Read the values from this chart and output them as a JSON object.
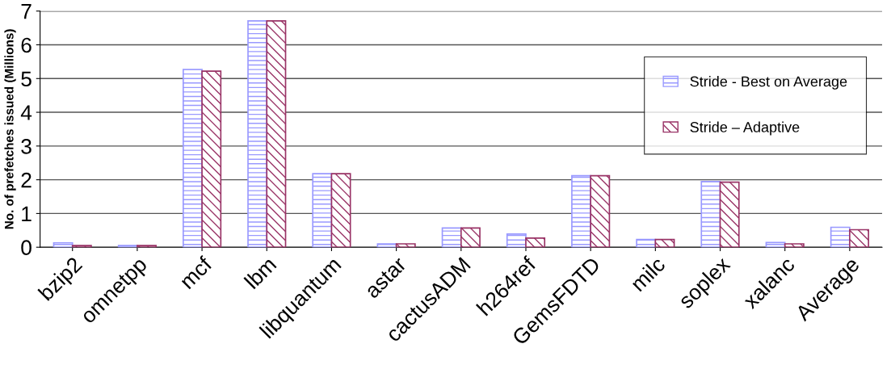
{
  "chart_data": {
    "type": "bar",
    "ylabel": "No. of prefetches issued (Millions)",
    "categories": [
      "bzip2",
      "omnetpp",
      "mcf",
      "lbm",
      "libquantum",
      "astar",
      "cactusADM",
      "h264ref",
      "GemsFDTD",
      "milc",
      "soplex",
      "xalanc",
      "Average"
    ],
    "series": [
      {
        "name": "Stride - Best on Average",
        "color": "#9999ff",
        "values": [
          0.13,
          0.05,
          5.27,
          6.71,
          2.18,
          0.1,
          0.57,
          0.39,
          2.12,
          0.23,
          1.95,
          0.14,
          0.59
        ]
      },
      {
        "name": "Stride – Adaptive",
        "color": "#993366",
        "values": [
          0.05,
          0.05,
          5.22,
          6.71,
          2.18,
          0.1,
          0.57,
          0.27,
          2.12,
          0.23,
          1.93,
          0.1,
          0.52
        ]
      }
    ],
    "ylim": [
      0,
      7
    ],
    "yticks": [
      0,
      1,
      2,
      3,
      4,
      5,
      6,
      7
    ],
    "grid": "y",
    "legend": "right"
  }
}
